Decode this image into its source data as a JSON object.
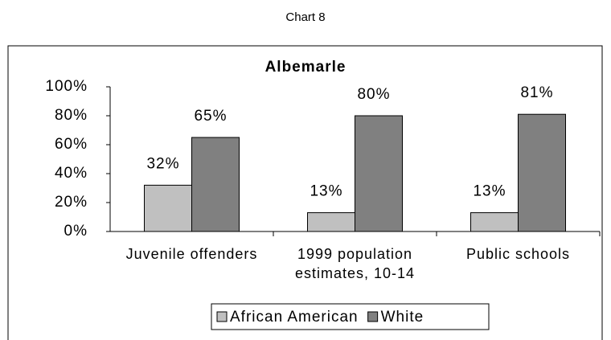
{
  "header": "Chart 8",
  "chart_data": {
    "type": "bar",
    "title": "Albemarle",
    "categories": [
      "Juvenile offenders",
      "1999 population estimates, 10-14",
      "Public schools"
    ],
    "series": [
      {
        "name": "African American",
        "color": "#c0c0c0",
        "values": [
          32,
          13,
          13
        ],
        "value_labels": [
          "32%",
          "13%",
          "13%"
        ]
      },
      {
        "name": "White",
        "color": "#808080",
        "values": [
          65,
          80,
          81
        ],
        "value_labels": [
          "65%",
          "80%",
          "81%"
        ]
      }
    ],
    "ylim": [
      0,
      100
    ],
    "yticks": [
      {
        "value": 0,
        "label": "0%"
      },
      {
        "value": 20,
        "label": "20%"
      },
      {
        "value": 40,
        "label": "40%"
      },
      {
        "value": 60,
        "label": "60%"
      },
      {
        "value": 80,
        "label": "80%"
      },
      {
        "value": 100,
        "label": "100%"
      }
    ],
    "legend": "bottom"
  }
}
